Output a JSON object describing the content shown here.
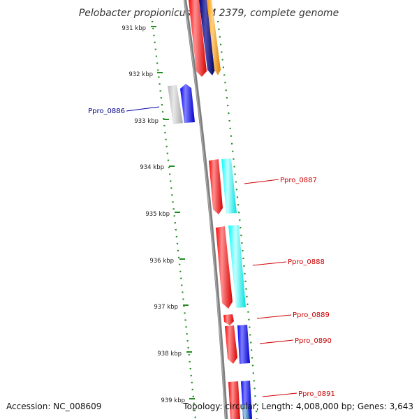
{
  "title": "Pelobacter propionicus DSM 2379, complete genome",
  "kbp_ticks": [
    "931 kbp",
    "932 kbp",
    "933 kbp",
    "934 kbp",
    "935 kbp",
    "936 kbp",
    "937 kbp",
    "938 kbp",
    "939 kbp"
  ],
  "genes": [
    {
      "name": "Ppro_0886",
      "color": "#00008b",
      "strand": "minus"
    },
    {
      "name": "Ppro_0887",
      "color": "#cc0000",
      "strand": "plus"
    },
    {
      "name": "Ppro_0888",
      "color": "#cc0000",
      "strand": "plus"
    },
    {
      "name": "Ppro_0889",
      "color": "#cc0000",
      "strand": "plus"
    },
    {
      "name": "Ppro_0890",
      "color": "#cc0000",
      "strand": "plus"
    },
    {
      "name": "Ppro_0891",
      "color": "#cc0000",
      "strand": "plus"
    }
  ],
  "footer": {
    "accession": "Accession: NC_008609",
    "topology": "Topology: circular; Length: 4,008,000 bp; Genes: 3,643"
  },
  "colors": {
    "backbone": "#808080",
    "gc_dots": "#228b22",
    "cds_red": "#ff0000",
    "cds_blue": "#0000ff",
    "cds_navy": "#000080",
    "cds_cyan": "#00ffff",
    "cds_orange": "#ffa500",
    "cds_gray": "#c0c0c0"
  }
}
